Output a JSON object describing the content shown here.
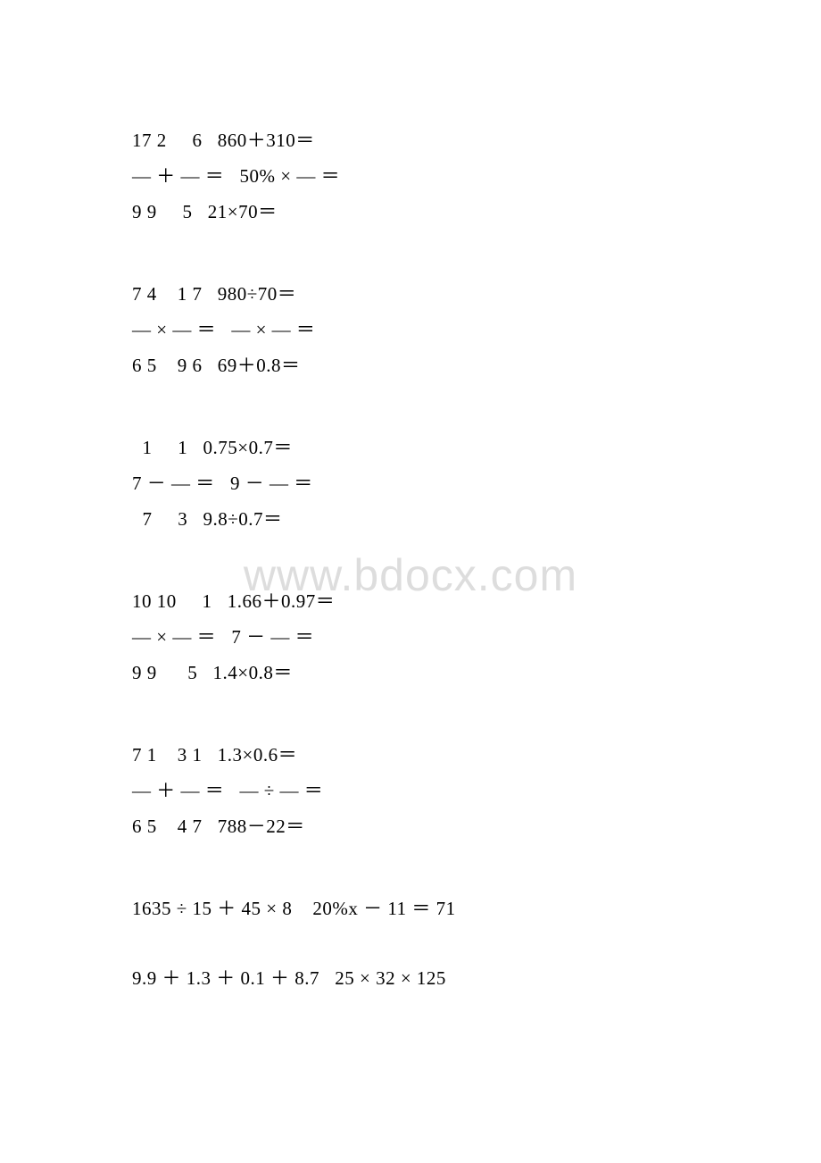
{
  "watermark": "www.bdocx.com",
  "blocks": [
    {
      "lines": [
        "17 2     6   860＋310＝",
        "— ＋ — ＝   50% × — ＝",
        "9 9     5   21×70＝"
      ]
    },
    {
      "lines": [
        "7 4    1 7   980÷70＝",
        "— × — ＝   — × — ＝",
        "6 5    9 6   69＋0.8＝"
      ]
    },
    {
      "lines": [
        "  1     1   0.75×0.7＝",
        "7 － — ＝   9 － — ＝",
        "  7     3   9.8÷0.7＝"
      ]
    },
    {
      "lines": [
        "10 10     1   1.66＋0.97＝",
        "— × — ＝   7 － — ＝",
        "9 9      5   1.4×0.8＝"
      ]
    },
    {
      "lines": [
        "7 1    3 1   1.3×0.6＝",
        "— ＋ — ＝   — ÷ — ＝",
        "6 5    4 7   788－22＝"
      ]
    }
  ],
  "bottom": [
    "1635 ÷ 15 ＋ 45 × 8    20%x － 11 ＝ 71",
    "9.9 ＋ 1.3 ＋ 0.1 ＋ 8.7   25 × 32 × 125"
  ]
}
